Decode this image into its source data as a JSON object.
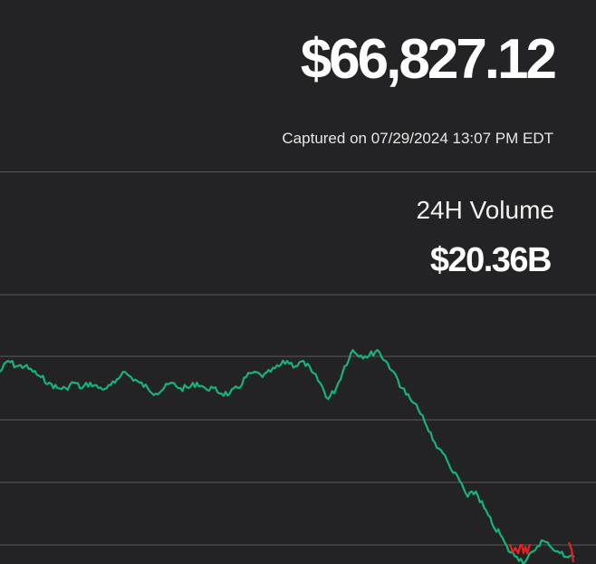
{
  "quote": {
    "price": "$66,827.12",
    "captured": "Captured on 07/29/2024 13:07 PM EDT"
  },
  "volume": {
    "label": "24H Volume",
    "value": "$20.36B"
  },
  "chart_data": {
    "type": "line",
    "description_free": true,
    "values": [
      66.9,
      67.1,
      67.0,
      67.0,
      66.9,
      66.8,
      66.7,
      66.6,
      66.6,
      66.7,
      66.6,
      66.7,
      66.6,
      66.6,
      66.7,
      66.9,
      66.8,
      66.7,
      66.6,
      66.5,
      66.6,
      66.7,
      66.6,
      66.6,
      66.7,
      66.6,
      66.6,
      66.5,
      66.5,
      66.6,
      66.8,
      66.9,
      66.8,
      66.9,
      67.0,
      67.1,
      67.0,
      67.1,
      66.9,
      66.7,
      66.4,
      66.6,
      67.0,
      67.3,
      67.2,
      67.2,
      67.3,
      67.1,
      66.9,
      66.6,
      66.4,
      66.2,
      65.9,
      65.6,
      65.4,
      65.1,
      64.9,
      64.6,
      64.7,
      64.4,
      64.1,
      63.9,
      63.6,
      63.5,
      63.4,
      63.6,
      63.8,
      63.7,
      63.6,
      63.5,
      63.5
    ],
    "ylim": [
      63.4,
      67.9
    ],
    "colors": {
      "up": "#16b37a",
      "down": "#e8231f"
    }
  }
}
